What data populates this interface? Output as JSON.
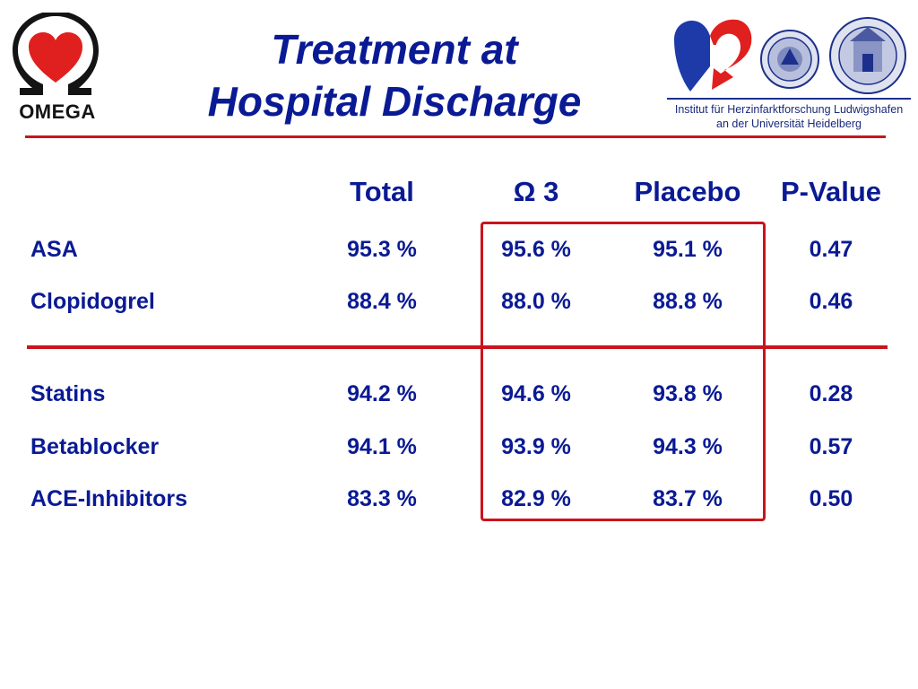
{
  "header": {
    "title_line1": "Treatment at",
    "title_line2": "Hospital Discharge",
    "omega_logo_text": "OMEGA",
    "institute_line1": "Institut für Herzinfarktforschung Ludwigshafen",
    "institute_line2": "an der Universität Heidelberg"
  },
  "table": {
    "columns": [
      "Total",
      "Ω 3",
      "Placebo",
      "P-Value"
    ],
    "rows": [
      {
        "label": "ASA",
        "total": "95.3 %",
        "omega3": "95.6 %",
        "placebo": "95.1 %",
        "p": "0.47"
      },
      {
        "label": "Clopidogrel",
        "total": "88.4 %",
        "omega3": "88.0 %",
        "placebo": "88.8 %",
        "p": "0.46"
      },
      {
        "label": "Statins",
        "total": "94.2 %",
        "omega3": "94.6 %",
        "placebo": "93.8 %",
        "p": "0.28"
      },
      {
        "label": "Betablocker",
        "total": "94.1 %",
        "omega3": "93.9 %",
        "placebo": "94.3 %",
        "p": "0.57"
      },
      {
        "label": "ACE-Inhibitors",
        "total": "83.3 %",
        "omega3": "82.9 %",
        "placebo": "83.7 %",
        "p": "0.50"
      }
    ]
  },
  "colors": {
    "title": "#0a1a94",
    "accent_red": "#c8141c",
    "heart_red": "#e0201e"
  }
}
